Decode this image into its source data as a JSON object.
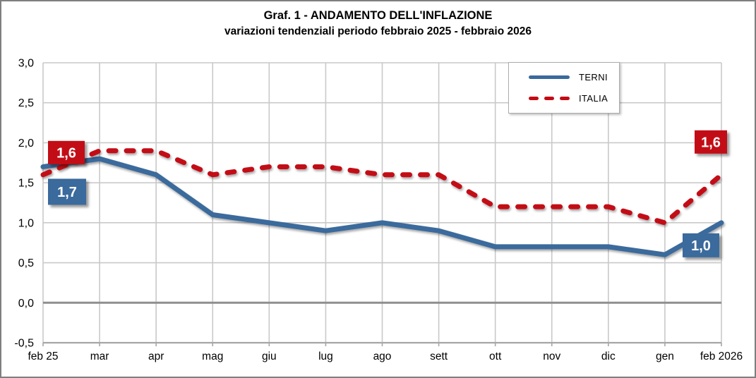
{
  "frame": {
    "title": "Graf. 1 - ANDAMENTO DELL'INFLAZIONE",
    "subtitle": "variazioni tendenziali periodo febbraio 2025 - febbraio 2026"
  },
  "legend": {
    "items": [
      {
        "label": "TERNI"
      },
      {
        "label": "ITALIA"
      }
    ]
  },
  "colors": {
    "terni_blue": "#3A6A9C",
    "italia_red": "#C30B15",
    "gridline": "#C9C9C9",
    "zero_line": "#8F8F8F",
    "axis_line": "#A6A6A6"
  },
  "chart_data": {
    "type": "line",
    "title": "Graf. 1 - ANDAMENTO DELL'INFLAZIONE",
    "subtitle": "variazioni tendenziali periodo febbraio 2025 - febbraio 2026",
    "categories": [
      "feb 25",
      "mar",
      "apr",
      "mag",
      "giu",
      "lug",
      "ago",
      "sett",
      "ott",
      "nov",
      "dic",
      "gen",
      "feb 2026"
    ],
    "series": [
      {
        "name": "TERNI",
        "color": "#3A6A9C",
        "dash": false,
        "values": [
          1.7,
          1.8,
          1.6,
          1.1,
          1.0,
          0.9,
          1.0,
          0.9,
          0.7,
          0.7,
          0.7,
          0.6,
          1.0
        ],
        "endpoint_labels": {
          "first": "1,7",
          "last": "1,0"
        }
      },
      {
        "name": "ITALIA",
        "color": "#C30B15",
        "dash": true,
        "values": [
          1.6,
          1.9,
          1.9,
          1.6,
          1.7,
          1.7,
          1.6,
          1.6,
          1.2,
          1.2,
          1.2,
          1.0,
          1.6
        ],
        "endpoint_labels": {
          "first": "1,6",
          "last": "1,6"
        }
      }
    ],
    "y_axis": {
      "min": -0.5,
      "max": 3.0,
      "step": 0.5,
      "tick_labels": [
        "3,0",
        "2,5",
        "2,0",
        "1,5",
        "1,0",
        "0,5",
        "0,0",
        "-0,5"
      ],
      "zero_line_emphasis": true
    },
    "ylim": [
      -0.5,
      3.0
    ],
    "grid": true,
    "legend_position": "top-right"
  }
}
